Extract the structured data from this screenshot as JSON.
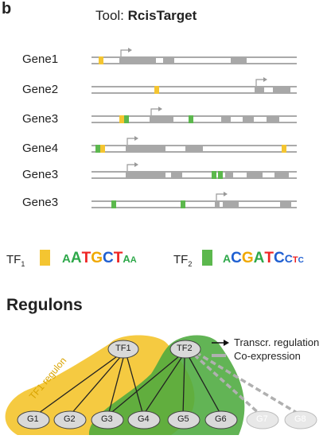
{
  "panel_letter": "b",
  "tool": {
    "prefix": "Tool:",
    "name": "RcisTarget"
  },
  "genes": [
    "Gene1",
    "Gene2",
    "Gene3",
    "Gene4",
    "Gene3",
    "Gene3"
  ],
  "tf_legend": {
    "tf1": {
      "name": "TF",
      "sub": "1",
      "color": "#f4c531",
      "motif": [
        "A",
        "A",
        "T",
        "G",
        "C",
        "T",
        "A",
        "A"
      ]
    },
    "tf2": {
      "name": "TF",
      "sub": "2",
      "color": "#5cb84d",
      "motif": [
        "A",
        "C",
        "G",
        "A",
        "T",
        "C",
        "C",
        "T",
        "C"
      ]
    }
  },
  "regulons_title": "Regulons",
  "network_legend": {
    "regulation": "Transcr. regulation",
    "coexpression": "Co-expression"
  },
  "region_label": "TF1 regulon",
  "nodes": {
    "tf1": "TF1",
    "tf2": "TF2",
    "genes": [
      "G1",
      "G2",
      "G3",
      "G4",
      "G5",
      "G6",
      "G7",
      "G8"
    ]
  },
  "colors": {
    "tf1": "#f4c531",
    "tf2": "#5cb84d",
    "exon": "#a8a8a8",
    "arrow": "#999999"
  }
}
